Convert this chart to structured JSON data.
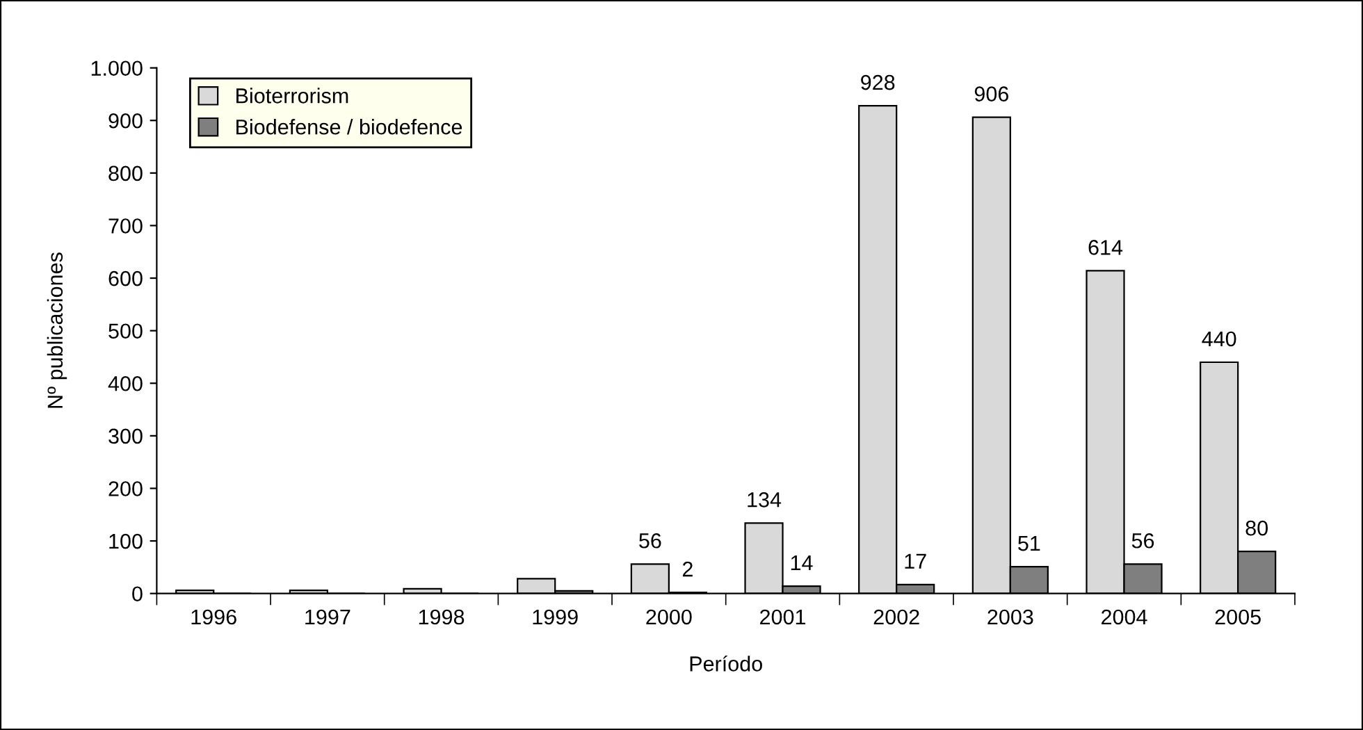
{
  "chart_data": {
    "type": "bar",
    "xlabel": "Período",
    "ylabel": "Nº publicaciones",
    "categories": [
      "1996",
      "1997",
      "1998",
      "1999",
      "2000",
      "2001",
      "2002",
      "2003",
      "2004",
      "2005"
    ],
    "series": [
      {
        "name": "Bioterrorism",
        "color": "#d9d9d9",
        "values": [
          6,
          6,
          9,
          28,
          56,
          134,
          928,
          906,
          614,
          440
        ],
        "value_labels": [
          null,
          null,
          null,
          null,
          "56",
          "134",
          "928",
          "906",
          "614",
          "440"
        ]
      },
      {
        "name": "Biodefense / biodefence",
        "color": "#7f7f7f",
        "values": [
          0,
          0,
          0,
          5,
          2,
          14,
          17,
          51,
          56,
          80
        ],
        "value_labels": [
          null,
          null,
          null,
          null,
          "2",
          "14",
          "17",
          "51",
          "56",
          "80"
        ]
      }
    ],
    "ylim": [
      0,
      1000
    ],
    "yticks": [
      0,
      100,
      200,
      300,
      400,
      500,
      600,
      700,
      800,
      900,
      {
        "value": 1000,
        "label": "1.000"
      }
    ],
    "grid": false,
    "legend": "top left"
  }
}
